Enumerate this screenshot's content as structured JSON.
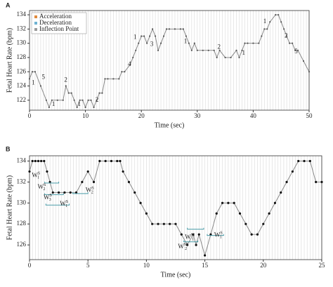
{
  "chart_data": [
    {
      "type": "line",
      "panel": "A",
      "xlabel": "Time (sec)",
      "ylabel": "Fetal Heart Rate (bpm)",
      "xlim": [
        0,
        50
      ],
      "xticks": [
        0,
        10,
        20,
        30,
        40,
        50
      ],
      "ylim": [
        120.6,
        134.6
      ],
      "yticks": [
        122,
        124,
        126,
        128,
        130,
        132,
        134
      ],
      "grid": true,
      "minor_grid_step": 0.5,
      "line_color": "#8a8a8a",
      "dot_color": "#555555",
      "legend": "upper left",
      "legend_items": [
        {
          "name": "Acceleration",
          "color": "#e08a3c"
        },
        {
          "name": "Deceleration",
          "color": "#6fb3d2"
        },
        {
          "name": "Inflection Point",
          "color": "#9a9a9a"
        }
      ],
      "x": [
        0,
        0.5,
        1,
        2,
        3,
        3.5,
        4,
        5,
        6,
        6.5,
        7,
        7.5,
        8,
        8.5,
        9,
        9.5,
        10,
        10.5,
        11,
        11.5,
        12,
        12.5,
        13,
        13.5,
        14,
        15,
        16,
        16.5,
        17,
        18,
        18.5,
        19,
        19.5,
        20,
        20.5,
        21,
        21.5,
        22,
        22.5,
        23,
        23.5,
        24,
        24.5,
        25,
        26,
        27,
        27.5,
        28,
        28.5,
        29,
        29.5,
        30,
        31,
        32,
        33,
        33.5,
        34,
        35,
        36,
        37,
        37.5,
        38,
        38.5,
        39,
        40,
        41,
        41.5,
        42,
        42.5,
        43,
        44,
        44.5,
        45,
        45.5,
        46,
        46.5,
        47,
        47.5,
        48,
        49,
        50
      ],
      "values": [
        125,
        126,
        126,
        124,
        122,
        121,
        122,
        122,
        122,
        124,
        123,
        123,
        122,
        121,
        122,
        122,
        121,
        122,
        122,
        121,
        122,
        123,
        123,
        125,
        125,
        125,
        125,
        126,
        126,
        127,
        128,
        129,
        130,
        131,
        131,
        130,
        131,
        132,
        131,
        129,
        130,
        131,
        132,
        132,
        132,
        132,
        132,
        131,
        130,
        129,
        130,
        129,
        129,
        129,
        129,
        128,
        129,
        128,
        128,
        129,
        128,
        129,
        130,
        130,
        130,
        130,
        131,
        132,
        132,
        133,
        134,
        134,
        133,
        132,
        131,
        130,
        130,
        129,
        129,
        127.5,
        126
      ],
      "annotations": [
        {
          "text": "1",
          "x": 0.4,
          "y": 124.4,
          "color": "#6fb3d2"
        },
        {
          "text": "5",
          "x": 2.2,
          "y": 125.2,
          "color": "#6fb3d2"
        },
        {
          "text": "1",
          "x": 4,
          "y": 121.4,
          "color": "#e08a3c"
        },
        {
          "text": "2",
          "x": 6.2,
          "y": 124.8,
          "color": "#6fb3d2"
        },
        {
          "text": "1",
          "x": 8.6,
          "y": 121.4,
          "color": "#e08a3c"
        },
        {
          "text": "2",
          "x": 11.8,
          "y": 122,
          "color": "#e08a3c"
        },
        {
          "text": "4",
          "x": 17.6,
          "y": 127,
          "color": "#e08a3c"
        },
        {
          "text": "1",
          "x": 18.6,
          "y": 130.8,
          "color": "#e08a3c"
        },
        {
          "text": "3",
          "x": 21.6,
          "y": 129.8,
          "color": "#e08a3c"
        },
        {
          "text": "1",
          "x": 27.6,
          "y": 130.2,
          "color": "#6fb3d2"
        },
        {
          "text": "2",
          "x": 33.6,
          "y": 129.4,
          "color": "#e08a3c"
        },
        {
          "text": "1",
          "x": 38,
          "y": 128.6,
          "color": "#6fb3d2"
        },
        {
          "text": "1",
          "x": 41.8,
          "y": 133,
          "color": "#e08a3c"
        },
        {
          "text": "2",
          "x": 45.6,
          "y": 131,
          "color": "#6fb3d2"
        },
        {
          "text": "5",
          "x": 47.4,
          "y": 128.8,
          "color": "#6fb3d2"
        }
      ],
      "brackets": []
    },
    {
      "type": "line",
      "panel": "B",
      "xlabel": "Time (sec)",
      "ylabel": "Fetal Heart Rate (bpm)",
      "xlim": [
        0,
        25
      ],
      "xticks": [
        0,
        5,
        10,
        15,
        20,
        25
      ],
      "ylim": [
        124.6,
        134.5
      ],
      "yticks": [
        126,
        128,
        130,
        132,
        134
      ],
      "grid": true,
      "minor_grid_step": 0.25,
      "line_color": "#8a8a8a",
      "dot_color": "#111111",
      "x": [
        0,
        0.25,
        0.5,
        0.75,
        1,
        1.25,
        1.5,
        1.75,
        2,
        2.5,
        3,
        3.5,
        4,
        4.5,
        5,
        5.5,
        6,
        6.5,
        7,
        7.5,
        7.75,
        8,
        8.5,
        9,
        9.5,
        10,
        10.5,
        11,
        11.5,
        12,
        12.5,
        13,
        13.5,
        14,
        14.25,
        14.5,
        15,
        15.5,
        16,
        16.5,
        17,
        17.5,
        18,
        18.5,
        19,
        19.5,
        20,
        20.5,
        21,
        21.5,
        22,
        22.5,
        23,
        23.5,
        24,
        24.5,
        25
      ],
      "values": [
        133,
        134,
        134,
        134,
        134,
        134,
        133,
        132,
        131,
        131,
        131,
        131,
        131,
        132,
        133,
        132,
        134,
        134,
        134,
        134,
        134,
        133,
        132,
        131,
        130,
        129,
        128,
        128,
        128,
        128,
        128,
        127,
        126,
        127,
        126,
        127,
        125,
        127,
        129,
        130,
        130,
        130,
        129,
        128,
        127,
        127,
        128,
        129,
        130,
        131,
        132,
        133,
        134,
        134,
        134,
        132,
        132
      ],
      "annotations": [
        {
          "text": "W",
          "sup": "S",
          "sub": "1",
          "x": 0.2,
          "y": 132.6,
          "color": "#4a9ca8"
        },
        {
          "text": "W",
          "sup": "S",
          "sub": "2",
          "x": 0.7,
          "y": 131.5,
          "color": "#4a9ca8"
        },
        {
          "text": "W",
          "sup": "S",
          "sub": "3",
          "x": 1.2,
          "y": 130.5,
          "color": "#4a9ca8"
        },
        {
          "text": "W",
          "sup": "S",
          "sub": "1",
          "x": 2.6,
          "y": 129.9,
          "color": "#4a9ca8"
        },
        {
          "text": "W",
          "sup": "S",
          "sub": "2",
          "x": 4.8,
          "y": 131.2,
          "color": "#4a9ca8"
        },
        {
          "text": "W",
          "sup": "M",
          "sub": "1",
          "x": 13.3,
          "y": 126.7,
          "color": "#4a9ca8"
        },
        {
          "text": "W",
          "sup": "S",
          "sub": "1",
          "x": 15.8,
          "y": 126.9,
          "color": "#4a9ca8"
        },
        {
          "text": "W",
          "sup": "M",
          "sub": "2",
          "x": 12.7,
          "y": 125.8,
          "color": "#4a9ca8"
        }
      ],
      "brackets": [
        [
          1.3,
          2.5,
          131.9
        ],
        [
          1.3,
          2.9,
          130.8
        ],
        [
          1.4,
          3.4,
          129.8
        ],
        [
          3.7,
          5.0,
          130.9
        ],
        [
          13.5,
          14.9,
          127.5
        ],
        [
          15.2,
          16.6,
          126.9
        ],
        [
          13.2,
          14.4,
          126.3
        ]
      ]
    }
  ]
}
